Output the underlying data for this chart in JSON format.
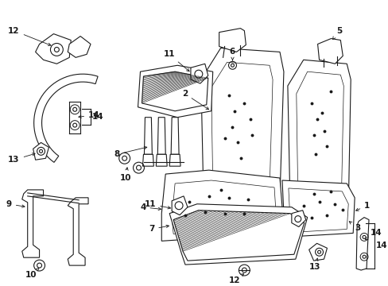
{
  "bg_color": "#ffffff",
  "line_color": "#1a1a1a",
  "fig_width": 4.89,
  "fig_height": 3.6,
  "dpi": 100,
  "font_size": 7.5,
  "font_weight": "bold"
}
